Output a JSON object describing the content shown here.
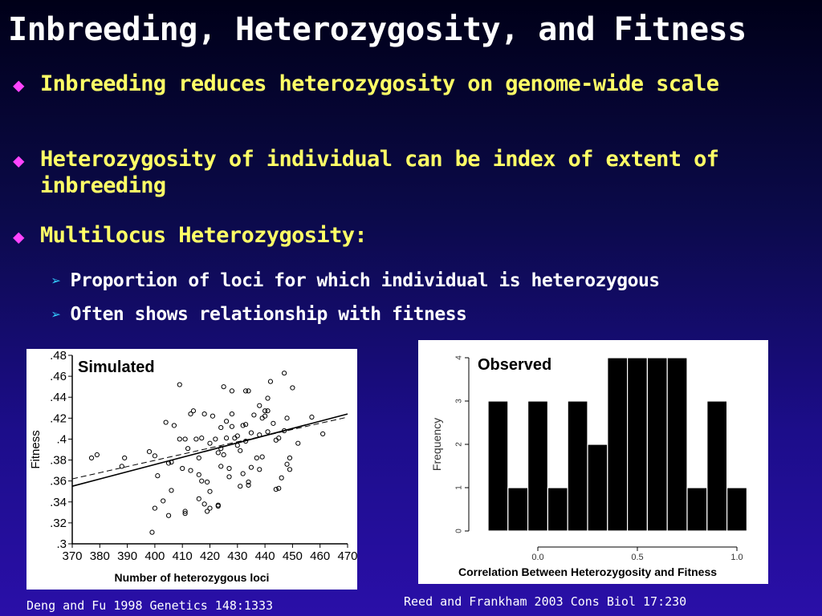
{
  "slide": {
    "title": "Inbreeding, Heterozygosity, and Fitness",
    "bullets": [
      {
        "text": "Inbreeding reduces heterozygosity on genome-wide scale"
      },
      {
        "text": "Heterozygosity of individual can be index of extent of inbreeding"
      },
      {
        "text": "Multilocus Heterozygosity:"
      }
    ],
    "subbullets": [
      {
        "text": "Proportion of loci for which individual is heterozygous"
      },
      {
        "text": "Often shows relationship with fitness"
      }
    ],
    "citations": {
      "left": "Deng and Fu 1998 Genetics 148:1333",
      "right": "Reed and Frankham 2003 Cons Biol 17:230"
    },
    "colors": {
      "title": "#ffffff",
      "bullet": "#ffff66",
      "diamond": "#ff44ff",
      "arrow": "#33ccff"
    },
    "icons": {
      "bullet": "diamond-icon",
      "subbullet": "arrow-icon"
    }
  },
  "chart_data": [
    {
      "type": "scatter",
      "title": "Simulated",
      "xlabel": "Number of heterozygous loci",
      "ylabel": "Fitness",
      "xlim": [
        370,
        470
      ],
      "ylim": [
        0.3,
        0.48
      ],
      "xticks": [
        "370",
        "380",
        "390",
        "400",
        "410",
        "420",
        "430",
        "440",
        "450",
        "460",
        "470"
      ],
      "yticks": [
        ".3",
        ".32",
        ".34",
        ".36",
        ".38",
        ".4",
        ".42",
        ".44",
        ".46",
        ".48"
      ],
      "grid": false,
      "points": [
        [
          377,
          0.382
        ],
        [
          379,
          0.385
        ],
        [
          388,
          0.374
        ],
        [
          389,
          0.382
        ],
        [
          398,
          0.388
        ],
        [
          399,
          0.311
        ],
        [
          400,
          0.384
        ],
        [
          400,
          0.334
        ],
        [
          401,
          0.365
        ],
        [
          403,
          0.341
        ],
        [
          404,
          0.416
        ],
        [
          405,
          0.327
        ],
        [
          405,
          0.377
        ],
        [
          406,
          0.378
        ],
        [
          406,
          0.351
        ],
        [
          407,
          0.413
        ],
        [
          409,
          0.4
        ],
        [
          409,
          0.452
        ],
        [
          410,
          0.372
        ],
        [
          411,
          0.4
        ],
        [
          411,
          0.329
        ],
        [
          411,
          0.331
        ],
        [
          412,
          0.391
        ],
        [
          413,
          0.424
        ],
        [
          413,
          0.37
        ],
        [
          414,
          0.427
        ],
        [
          415,
          0.4
        ],
        [
          416,
          0.382
        ],
        [
          416,
          0.343
        ],
        [
          416,
          0.366
        ],
        [
          417,
          0.401
        ],
        [
          417,
          0.36
        ],
        [
          418,
          0.424
        ],
        [
          418,
          0.338
        ],
        [
          419,
          0.331
        ],
        [
          419,
          0.359
        ],
        [
          420,
          0.396
        ],
        [
          420,
          0.334
        ],
        [
          420,
          0.35
        ],
        [
          421,
          0.422
        ],
        [
          422,
          0.4
        ],
        [
          423,
          0.336
        ],
        [
          423,
          0.337
        ],
        [
          423,
          0.387
        ],
        [
          424,
          0.391
        ],
        [
          424,
          0.411
        ],
        [
          424,
          0.374
        ],
        [
          425,
          0.45
        ],
        [
          425,
          0.385
        ],
        [
          426,
          0.417
        ],
        [
          426,
          0.401
        ],
        [
          427,
          0.372
        ],
        [
          427,
          0.364
        ],
        [
          428,
          0.446
        ],
        [
          428,
          0.424
        ],
        [
          428,
          0.412
        ],
        [
          429,
          0.401
        ],
        [
          430,
          0.403
        ],
        [
          430,
          0.394
        ],
        [
          431,
          0.355
        ],
        [
          431,
          0.389
        ],
        [
          432,
          0.413
        ],
        [
          432,
          0.367
        ],
        [
          433,
          0.446
        ],
        [
          433,
          0.398
        ],
        [
          433,
          0.414
        ],
        [
          434,
          0.446
        ],
        [
          434,
          0.356
        ],
        [
          434,
          0.359
        ],
        [
          435,
          0.406
        ],
        [
          435,
          0.373
        ],
        [
          436,
          0.423
        ],
        [
          437,
          0.382
        ],
        [
          438,
          0.432
        ],
        [
          438,
          0.371
        ],
        [
          438,
          0.404
        ],
        [
          439,
          0.383
        ],
        [
          439,
          0.42
        ],
        [
          440,
          0.427
        ],
        [
          440,
          0.422
        ],
        [
          441,
          0.439
        ],
        [
          441,
          0.427
        ],
        [
          441,
          0.407
        ],
        [
          442,
          0.455
        ],
        [
          443,
          0.415
        ],
        [
          444,
          0.352
        ],
        [
          444,
          0.399
        ],
        [
          445,
          0.353
        ],
        [
          445,
          0.401
        ],
        [
          446,
          0.363
        ],
        [
          447,
          0.463
        ],
        [
          447,
          0.408
        ],
        [
          448,
          0.42
        ],
        [
          448,
          0.376
        ],
        [
          449,
          0.371
        ],
        [
          449,
          0.382
        ],
        [
          450,
          0.449
        ],
        [
          452,
          0.396
        ],
        [
          457,
          0.421
        ],
        [
          461,
          0.405
        ]
      ],
      "lines": [
        {
          "style": "solid",
          "from": [
            370,
            0.355
          ],
          "to": [
            470,
            0.424
          ]
        },
        {
          "style": "dashed",
          "from": [
            370,
            0.362
          ],
          "to": [
            470,
            0.421
          ]
        }
      ]
    },
    {
      "type": "bar",
      "title": "Observed",
      "xlabel": "Correlation Between Heterozygosity and Fitness",
      "ylabel": "Frequency",
      "xlim": [
        -0.25,
        1.05
      ],
      "ylim": [
        0,
        4
      ],
      "xticks": [
        "0.0",
        "0.5",
        "1.0"
      ],
      "yticks": [
        "0",
        "1",
        "2",
        "3",
        "4"
      ],
      "bin_width": 0.1,
      "bin_starts": [
        -0.25,
        -0.15,
        -0.05,
        0.05,
        0.15,
        0.25,
        0.35,
        0.45,
        0.55,
        0.65,
        0.75,
        0.85,
        0.95
      ],
      "values": [
        3,
        1,
        3,
        1,
        3,
        2,
        4,
        4,
        4,
        4,
        1,
        3,
        1
      ]
    }
  ]
}
